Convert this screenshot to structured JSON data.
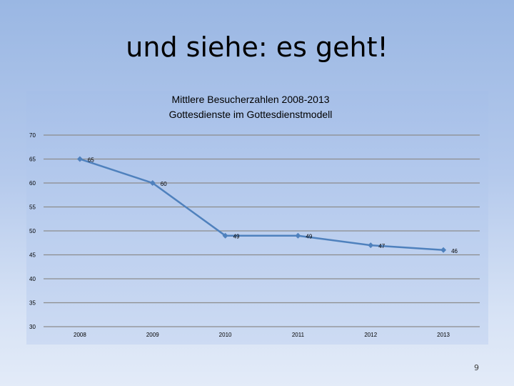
{
  "slide": {
    "title": "und siehe: es geht!",
    "page_number": "9"
  },
  "colors": {
    "series": "#4f81bd",
    "grid": "#8c8c8c"
  },
  "chart_data": {
    "type": "line",
    "title_lines": [
      "Mittlere Besucherzahlen 2008-2013",
      "Gottesdienste im Gottesdienstmodell"
    ],
    "categories": [
      "2008",
      "2009",
      "2010",
      "2011",
      "2012",
      "2013"
    ],
    "series": [
      {
        "values": [
          65,
          60,
          49,
          49,
          47,
          46
        ]
      }
    ],
    "data_labels": [
      "65",
      "60",
      "49",
      "49",
      "47",
      "46"
    ],
    "ylim": [
      30,
      70
    ],
    "ytick_labels": [
      "30",
      "35",
      "40",
      "45",
      "50",
      "55",
      "60",
      "65",
      "70"
    ],
    "grid": true,
    "legend": "none",
    "marker": "diamond"
  }
}
